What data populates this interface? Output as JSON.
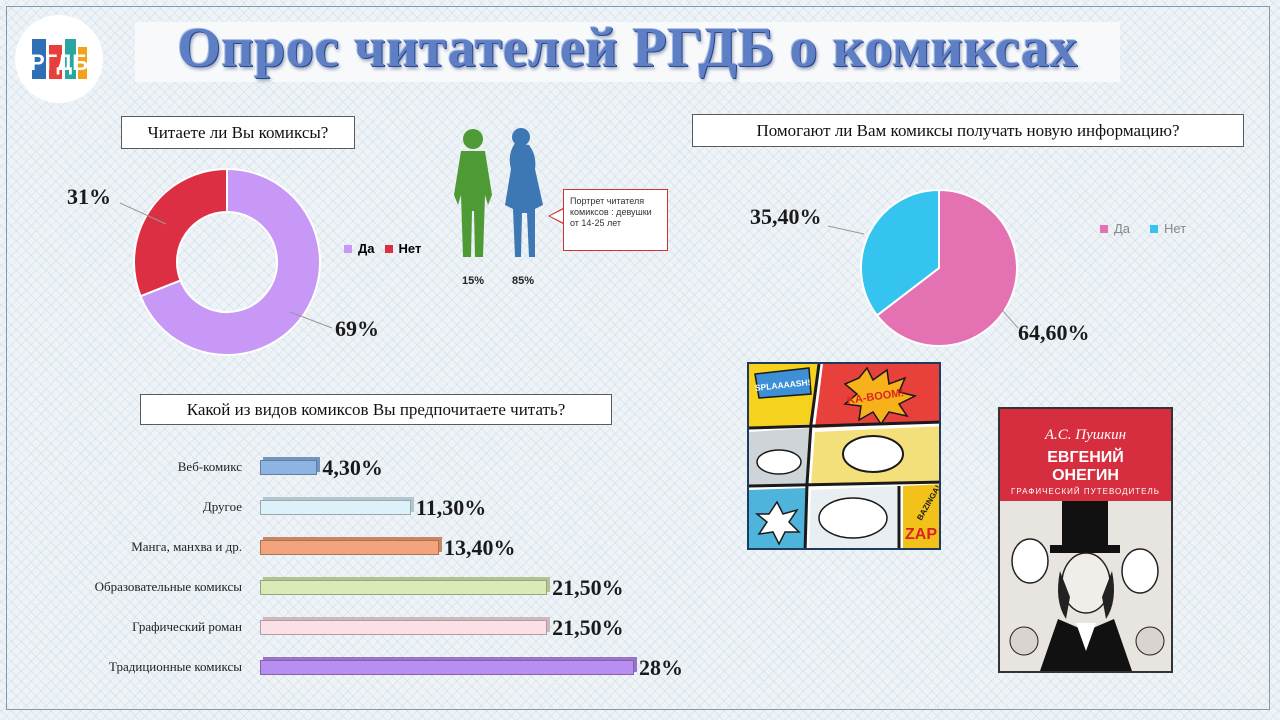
{
  "header": {
    "title": "Опрос читателей РГДБ о комиксах",
    "logo_text": "РГДБ",
    "logo_colors": [
      "#2f6fb6",
      "#e83f3a",
      "#2aa6a0",
      "#f2a21b"
    ]
  },
  "portrait": {
    "male_pct": "15%",
    "female_pct": "85%",
    "note": "Портрет читателя комиксов : девушки от 14-25 лет",
    "male_color": "#4e9a34",
    "female_color": "#3e78b4"
  },
  "illustration": {
    "comic_words": [
      "SPLAAAASH!",
      "KA-BOOM!",
      "BAZINGA!",
      "ZAP"
    ],
    "book_author": "А.С. Пушкин",
    "book_title_line1": "ЕВГЕНИЙ",
    "book_title_line2": "ОНЕГИН",
    "book_subtitle": "ГРАФИЧЕСКИЙ ПУТЕВОДИТЕЛЬ"
  },
  "chart_data": [
    {
      "type": "pie",
      "variant": "donut",
      "title": "Читаете ли Вы комиксы?",
      "categories": [
        "Да",
        "Нет"
      ],
      "values": [
        69,
        31
      ],
      "labels": [
        "69%",
        "31%"
      ],
      "colors": [
        "#c898f6",
        "#dc2f44"
      ],
      "legend": "right"
    },
    {
      "type": "pie",
      "title": "Помогают ли Вам комиксы получать новую информацию?",
      "categories": [
        "Да",
        "Нет"
      ],
      "values": [
        64.6,
        35.4
      ],
      "labels": [
        "64,60%",
        "35,40%"
      ],
      "colors": [
        "#e472b2",
        "#35c4f0"
      ],
      "legend": "right"
    },
    {
      "type": "bar",
      "orientation": "horizontal",
      "title": "Какой из видов комиксов Вы предпочитаете читать?",
      "categories": [
        "Веб-комикс",
        "Другое",
        "Манга, манхва и др.",
        "Образовательные комиксы",
        "Графический роман",
        "Традиционные комиксы"
      ],
      "values": [
        4.3,
        11.3,
        13.4,
        21.5,
        21.5,
        28
      ],
      "labels": [
        "4,30%",
        "11,30%",
        "13,40%",
        "21,50%",
        "21,50%",
        "28%"
      ],
      "colors": [
        "#8eb4e3",
        "#dcf1fa",
        "#f3a47c",
        "#d9ecb6",
        "#fbe0e6",
        "#b88ef2"
      ],
      "xlim": [
        0,
        28
      ]
    }
  ]
}
